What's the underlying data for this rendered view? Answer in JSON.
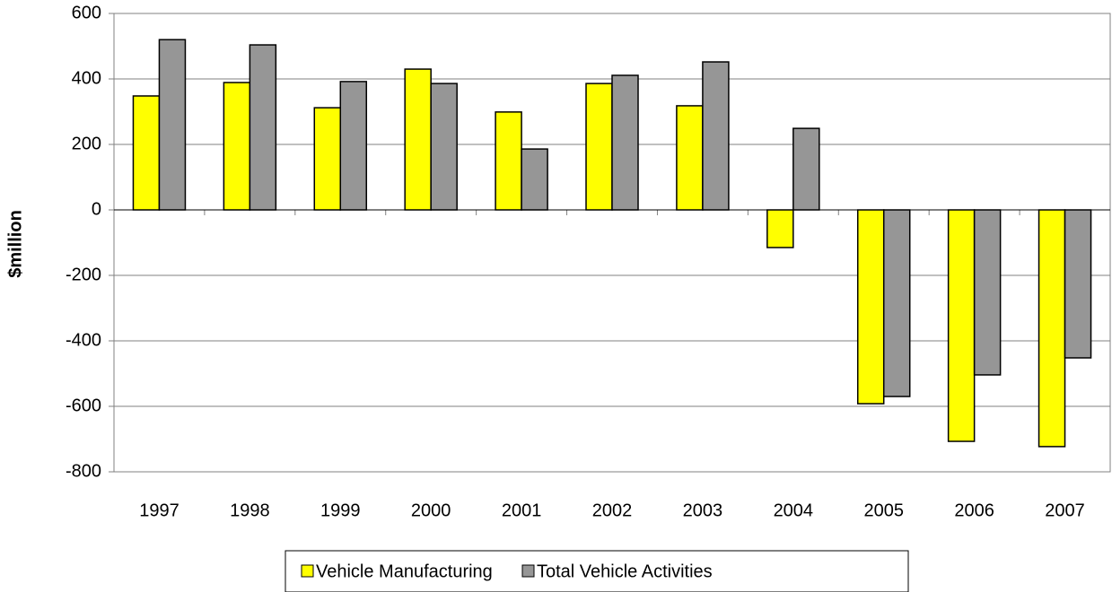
{
  "chart_data": {
    "type": "bar",
    "y_label": "$million",
    "categories": [
      "1997",
      "1998",
      "1999",
      "2000",
      "2001",
      "2002",
      "2003",
      "2004",
      "2005",
      "2006",
      "2007"
    ],
    "series": [
      {
        "name": "Vehicle Manufacturing",
        "color": "#ffff00",
        "values": [
          348,
          389,
          312,
          430,
          299,
          386,
          318,
          -115,
          -592,
          -707,
          -723
        ]
      },
      {
        "name": "Total Vehicle Activities",
        "color": "#969696",
        "values": [
          520,
          504,
          392,
          386,
          186,
          411,
          452,
          249,
          -570,
          -504,
          -452
        ]
      }
    ],
    "ylim": [
      -800,
      600
    ],
    "yticks": [
      -800,
      -600,
      -400,
      -200,
      0,
      200,
      400,
      600
    ],
    "grid": true,
    "legend": "bottom"
  }
}
